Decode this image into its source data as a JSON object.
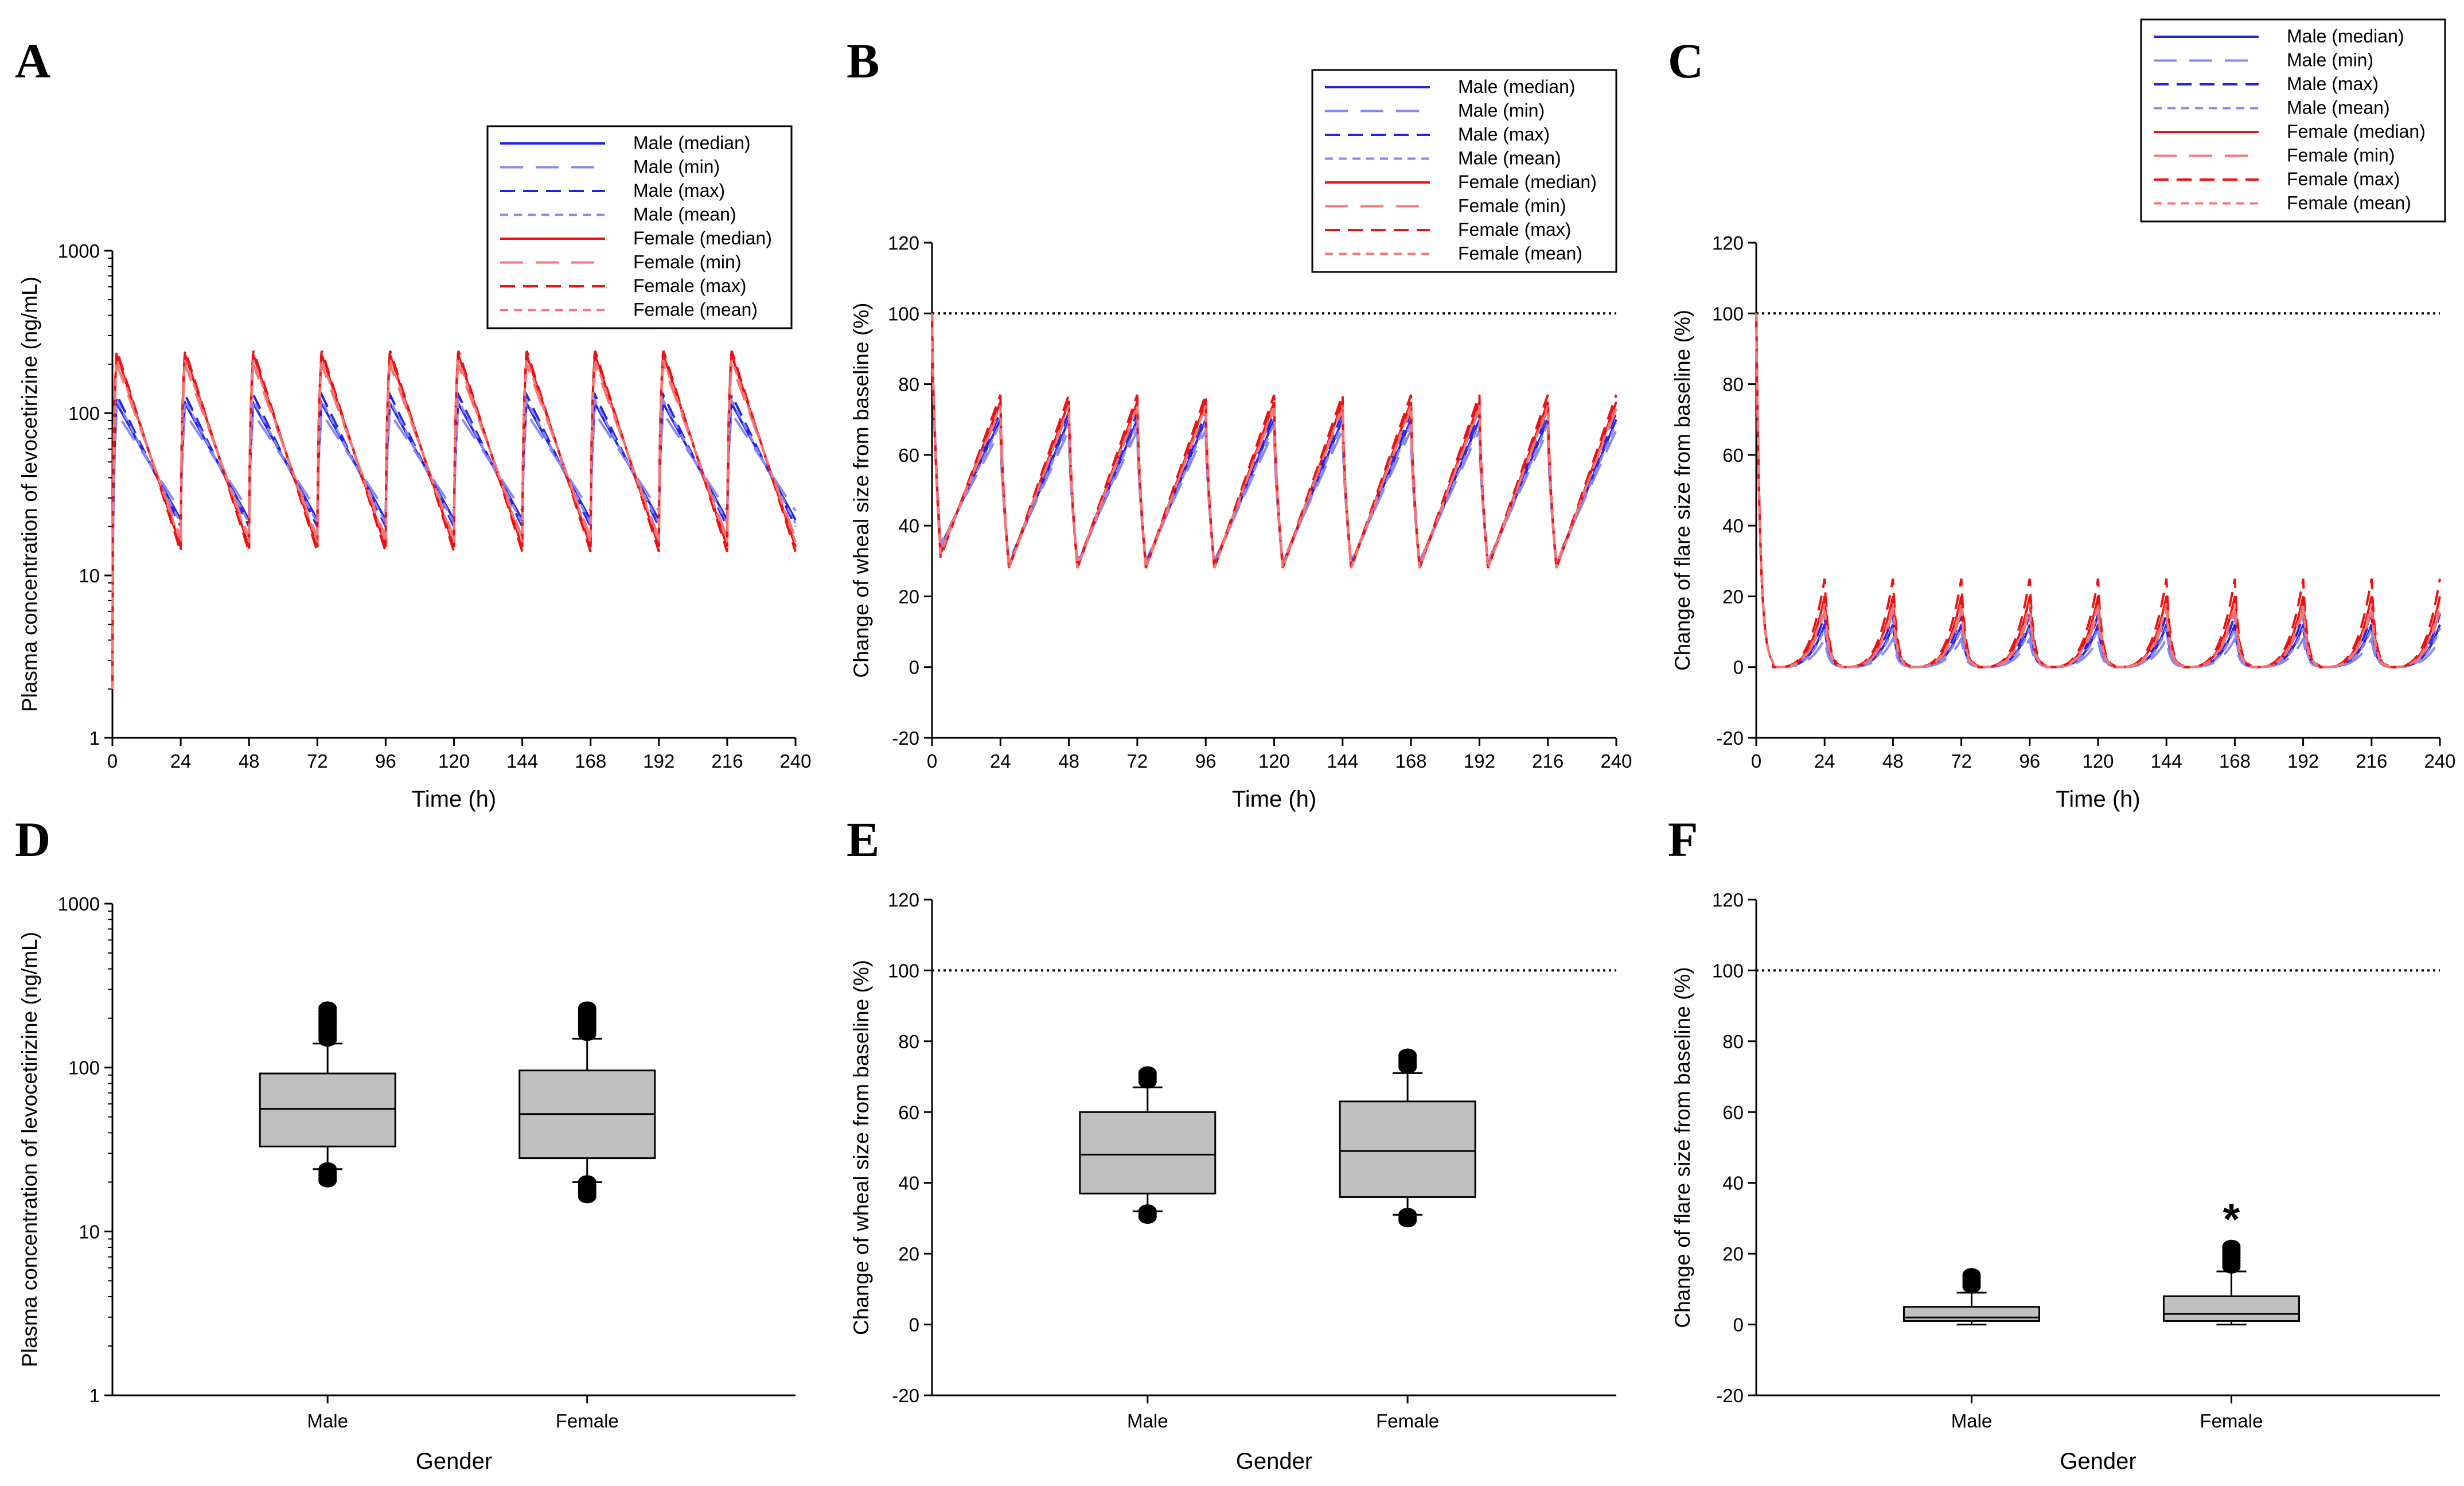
{
  "figure": {
    "colors": {
      "male": "#2323ee",
      "male_light": "#8888f4",
      "female": "#ee1111",
      "female_light": "#f47777",
      "box_fill": "#c0c0c0",
      "axis": "#000000",
      "reference_line": "#000000"
    }
  },
  "chart_data": [
    {
      "panel": "A",
      "type": "line",
      "xlabel": "Time (h)",
      "ylabel": "Plasma concentration of levocetirizine (ng/mL)",
      "y_scale": "log",
      "ylim": [
        1,
        1000
      ],
      "yticks": [
        1,
        10,
        100,
        1000
      ],
      "yticklabels": [
        "1",
        "10",
        "100",
        "1000"
      ],
      "xlim": [
        0,
        240
      ],
      "xticks": [
        "0",
        "24",
        "48",
        "72",
        "96",
        "120",
        "144",
        "168",
        "192",
        "216",
        "240"
      ],
      "legend": [
        "Male (median)",
        "Male (min)",
        "Male (max)",
        "Male (mean)",
        "Female (median)",
        "Female (min)",
        "Female (max)",
        "Female (mean)"
      ],
      "legend_position": "top-right",
      "dose_interval_h": 24,
      "series": [
        {
          "name": "Male (median)",
          "group": "male",
          "peak": 115,
          "trough": 22,
          "start": 2
        },
        {
          "name": "Male (min)",
          "group": "male",
          "peak": 100,
          "trough": 25,
          "start": 2
        },
        {
          "name": "Male (max)",
          "group": "male",
          "peak": 130,
          "trough": 20,
          "start": 2
        },
        {
          "name": "Male (mean)",
          "group": "male",
          "peak": 120,
          "trough": 21,
          "start": 2
        },
        {
          "name": "Female (median)",
          "group": "female",
          "peak": 230,
          "trough": 15,
          "start": 2
        },
        {
          "name": "Female (min)",
          "group": "female",
          "peak": 200,
          "trough": 17,
          "start": 2
        },
        {
          "name": "Female (max)",
          "group": "female",
          "peak": 245,
          "trough": 14,
          "start": 2
        },
        {
          "name": "Female (mean)",
          "group": "female",
          "peak": 215,
          "trough": 16,
          "start": 2
        }
      ]
    },
    {
      "panel": "B",
      "type": "line",
      "xlabel": "Time (h)",
      "ylabel": "Change of wheal size from baseline (%)",
      "y_scale": "linear",
      "ylim": [
        -20,
        120
      ],
      "yticks": [
        "-20",
        "0",
        "20",
        "40",
        "60",
        "80",
        "100",
        "120"
      ],
      "xlim": [
        0,
        240
      ],
      "xticks": [
        "0",
        "24",
        "48",
        "72",
        "96",
        "120",
        "144",
        "168",
        "192",
        "216",
        "240"
      ],
      "reference_line": 100,
      "legend": [
        "Male (median)",
        "Male (min)",
        "Male (max)",
        "Male (mean)",
        "Female (median)",
        "Female (min)",
        "Female (max)",
        "Female (mean)"
      ],
      "legend_position": "top-right",
      "dose_interval_h": 24,
      "series": [
        {
          "name": "Male (median)",
          "group": "male",
          "start": 100,
          "first_min": 34,
          "trough": 29,
          "peak": 70
        },
        {
          "name": "Male (min)",
          "group": "male",
          "start": 100,
          "first_min": 35,
          "trough": 30,
          "peak": 67
        },
        {
          "name": "Male (max)",
          "group": "male",
          "start": 100,
          "first_min": 33,
          "trough": 29,
          "peak": 72
        },
        {
          "name": "Male (mean)",
          "group": "male",
          "start": 100,
          "first_min": 34,
          "trough": 29,
          "peak": 69
        },
        {
          "name": "Female (median)",
          "group": "female",
          "start": 100,
          "first_min": 32,
          "trough": 28,
          "peak": 75
        },
        {
          "name": "Female (min)",
          "group": "female",
          "start": 100,
          "first_min": 33,
          "trough": 29,
          "peak": 73
        },
        {
          "name": "Female (max)",
          "group": "female",
          "start": 100,
          "first_min": 31,
          "trough": 28,
          "peak": 77
        },
        {
          "name": "Female (mean)",
          "group": "female",
          "start": 100,
          "first_min": 32,
          "trough": 28,
          "peak": 74
        }
      ]
    },
    {
      "panel": "C",
      "type": "line",
      "xlabel": "Time (h)",
      "ylabel": "Change of flare size from baseline (%)",
      "y_scale": "linear",
      "ylim": [
        -20,
        120
      ],
      "yticks": [
        "-20",
        "0",
        "20",
        "40",
        "60",
        "80",
        "100",
        "120"
      ],
      "xlim": [
        0,
        240
      ],
      "xticks": [
        "0",
        "24",
        "48",
        "72",
        "96",
        "120",
        "144",
        "168",
        "192",
        "216",
        "240"
      ],
      "reference_line": 100,
      "legend": [
        "Male (median)",
        "Male (min)",
        "Male (max)",
        "Male (mean)",
        "Female (median)",
        "Female (min)",
        "Female (max)",
        "Female (mean)"
      ],
      "legend_position": "top-right",
      "dose_interval_h": 24,
      "series": [
        {
          "name": "Male (median)",
          "group": "male",
          "start": 100,
          "trough": 0,
          "peak": 12
        },
        {
          "name": "Male (min)",
          "group": "male",
          "start": 100,
          "trough": 0,
          "peak": 8
        },
        {
          "name": "Male (max)",
          "group": "male",
          "start": 100,
          "trough": 0,
          "peak": 15
        },
        {
          "name": "Male (mean)",
          "group": "male",
          "start": 100,
          "trough": 0,
          "peak": 11
        },
        {
          "name": "Female (median)",
          "group": "female",
          "start": 100,
          "trough": 0,
          "peak": 20
        },
        {
          "name": "Female (min)",
          "group": "female",
          "start": 100,
          "trough": 0,
          "peak": 16
        },
        {
          "name": "Female (max)",
          "group": "female",
          "start": 100,
          "trough": 0,
          "peak": 25
        },
        {
          "name": "Female (mean)",
          "group": "female",
          "start": 100,
          "trough": 0,
          "peak": 18
        }
      ]
    },
    {
      "panel": "D",
      "type": "box",
      "xlabel": "Gender",
      "ylabel": "Plasma concentration of levocetirizine (ng/mL)",
      "y_scale": "log",
      "ylim": [
        1,
        1000
      ],
      "yticks": [
        1,
        10,
        100,
        1000
      ],
      "yticklabels": [
        "1",
        "10",
        "100",
        "1000"
      ],
      "categories": [
        "Male",
        "Female"
      ],
      "boxes": [
        {
          "category": "Male",
          "whisker_low": 24,
          "q1": 33,
          "median": 56,
          "q3": 92,
          "whisker_high": 140,
          "outliers_low": [
            20,
            24
          ],
          "outliers_high": [
            145,
            230
          ]
        },
        {
          "category": "Female",
          "whisker_low": 20,
          "q1": 28,
          "median": 52,
          "q3": 96,
          "whisker_high": 150,
          "outliers_low": [
            16,
            20
          ],
          "outliers_high": [
            155,
            230
          ]
        }
      ]
    },
    {
      "panel": "E",
      "type": "box",
      "xlabel": "Gender",
      "ylabel": "Change of wheal size from baseline (%)",
      "y_scale": "linear",
      "ylim": [
        -20,
        120
      ],
      "yticks": [
        "-20",
        "0",
        "20",
        "40",
        "60",
        "80",
        "100",
        "120"
      ],
      "reference_line": 100,
      "categories": [
        "Male",
        "Female"
      ],
      "boxes": [
        {
          "category": "Male",
          "whisker_low": 32,
          "q1": 37,
          "median": 48,
          "q3": 60,
          "whisker_high": 67,
          "outliers_low": [
            30,
            32
          ],
          "outliers_high": [
            68,
            71
          ]
        },
        {
          "category": "Female",
          "whisker_low": 31,
          "q1": 36,
          "median": 49,
          "q3": 63,
          "whisker_high": 71,
          "outliers_low": [
            29,
            31
          ],
          "outliers_high": [
            72,
            76
          ]
        }
      ]
    },
    {
      "panel": "F",
      "type": "box",
      "xlabel": "Gender",
      "ylabel": "Change of flare size from baseline (%)",
      "y_scale": "linear",
      "ylim": [
        -20,
        120
      ],
      "yticks": [
        "-20",
        "0",
        "20",
        "40",
        "60",
        "80",
        "100",
        "120"
      ],
      "reference_line": 100,
      "categories": [
        "Male",
        "Female"
      ],
      "annotation": "*",
      "boxes": [
        {
          "category": "Male",
          "whisker_low": 0,
          "q1": 1,
          "median": 2,
          "q3": 5,
          "whisker_high": 9,
          "outliers_low": [],
          "outliers_high": [
            10,
            14
          ]
        },
        {
          "category": "Female",
          "whisker_low": 0,
          "q1": 1,
          "median": 3,
          "q3": 8,
          "whisker_high": 15,
          "outliers_low": [],
          "outliers_high": [
            16,
            22
          ]
        }
      ]
    }
  ]
}
